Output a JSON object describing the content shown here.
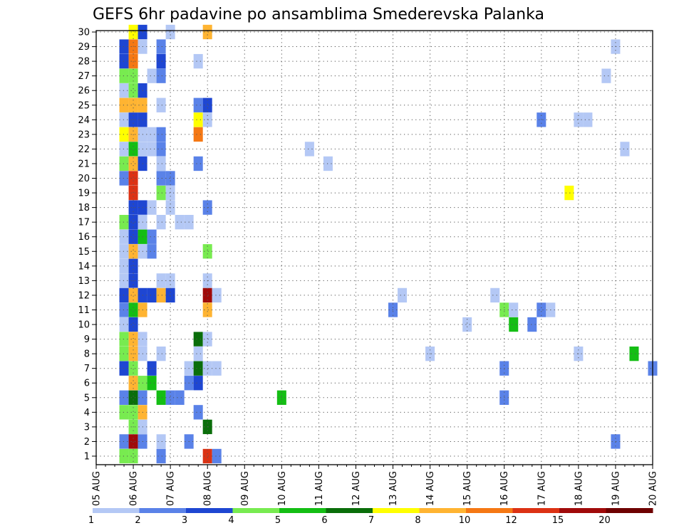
{
  "chart_data": {
    "type": "heatmap",
    "title": "GEFS 6hr padavine po ansamblima Smederevska Palanka",
    "xlabel": "",
    "ylabel": "",
    "x_ticks": [
      "05 AUG",
      "06 AUG",
      "07 AUG",
      "08 AUG",
      "09 AUG",
      "10 AUG",
      "11 AUG",
      "12 AUG",
      "13 AUG",
      "14 AUG",
      "15 AUG",
      "16 AUG",
      "17 AUG",
      "18 AUG",
      "19 AUG",
      "20 AUG"
    ],
    "y_ticks": [
      1,
      2,
      3,
      4,
      5,
      6,
      7,
      8,
      9,
      10,
      11,
      12,
      13,
      14,
      15,
      16,
      17,
      18,
      19,
      20,
      21,
      22,
      23,
      24,
      25,
      26,
      27,
      28,
      29,
      30
    ],
    "grid": true,
    "time_step_hours": 6,
    "members": 30,
    "colorbar": {
      "labels": [
        "1",
        "2",
        "3",
        "4",
        "5",
        "6",
        "7",
        "8",
        "10",
        "12",
        "15",
        "20"
      ],
      "colors": [
        "#b4c8f5",
        "#5a82e8",
        "#1e46d2",
        "#78eb50",
        "#14be14",
        "#0a6e0a",
        "#ffff00",
        "#ffb432",
        "#f57814",
        "#dc3214",
        "#a00a0a",
        "#6e0000"
      ]
    },
    "cells": [
      {
        "member": 30,
        "step": 4,
        "level": 7
      },
      {
        "member": 30,
        "step": 5,
        "level": 3
      },
      {
        "member": 30,
        "step": 8,
        "level": 1
      },
      {
        "member": 30,
        "step": 12,
        "level": 8
      },
      {
        "member": 29,
        "step": 3,
        "level": 3
      },
      {
        "member": 29,
        "step": 4,
        "level": 9
      },
      {
        "member": 29,
        "step": 5,
        "level": 1
      },
      {
        "member": 29,
        "step": 7,
        "level": 2
      },
      {
        "member": 29,
        "step": 56,
        "level": 1
      },
      {
        "member": 28,
        "step": 3,
        "level": 3
      },
      {
        "member": 28,
        "step": 4,
        "level": 9
      },
      {
        "member": 28,
        "step": 7,
        "level": 3
      },
      {
        "member": 28,
        "step": 11,
        "level": 1
      },
      {
        "member": 27,
        "step": 3,
        "level": 4
      },
      {
        "member": 27,
        "step": 4,
        "level": 4
      },
      {
        "member": 27,
        "step": 6,
        "level": 1
      },
      {
        "member": 27,
        "step": 7,
        "level": 2
      },
      {
        "member": 27,
        "step": 55,
        "level": 1
      },
      {
        "member": 26,
        "step": 3,
        "level": 1
      },
      {
        "member": 26,
        "step": 4,
        "level": 4
      },
      {
        "member": 26,
        "step": 5,
        "level": 3
      },
      {
        "member": 25,
        "step": 3,
        "level": 8
      },
      {
        "member": 25,
        "step": 4,
        "level": 8
      },
      {
        "member": 25,
        "step": 5,
        "level": 8
      },
      {
        "member": 25,
        "step": 7,
        "level": 1
      },
      {
        "member": 25,
        "step": 11,
        "level": 2
      },
      {
        "member": 25,
        "step": 12,
        "level": 3
      },
      {
        "member": 24,
        "step": 3,
        "level": 1
      },
      {
        "member": 24,
        "step": 4,
        "level": 3
      },
      {
        "member": 24,
        "step": 5,
        "level": 3
      },
      {
        "member": 24,
        "step": 11,
        "level": 7
      },
      {
        "member": 24,
        "step": 12,
        "level": 1
      },
      {
        "member": 24,
        "step": 48,
        "level": 2
      },
      {
        "member": 24,
        "step": 52,
        "level": 1
      },
      {
        "member": 24,
        "step": 53,
        "level": 1
      },
      {
        "member": 23,
        "step": 3,
        "level": 7
      },
      {
        "member": 23,
        "step": 4,
        "level": 8
      },
      {
        "member": 23,
        "step": 5,
        "level": 1
      },
      {
        "member": 23,
        "step": 6,
        "level": 1
      },
      {
        "member": 23,
        "step": 7,
        "level": 2
      },
      {
        "member": 23,
        "step": 11,
        "level": 9
      },
      {
        "member": 22,
        "step": 3,
        "level": 1
      },
      {
        "member": 22,
        "step": 4,
        "level": 5
      },
      {
        "member": 22,
        "step": 5,
        "level": 1
      },
      {
        "member": 22,
        "step": 6,
        "level": 1
      },
      {
        "member": 22,
        "step": 7,
        "level": 2
      },
      {
        "member": 22,
        "step": 23,
        "level": 1
      },
      {
        "member": 22,
        "step": 57,
        "level": 1
      },
      {
        "member": 21,
        "step": 3,
        "level": 4
      },
      {
        "member": 21,
        "step": 4,
        "level": 8
      },
      {
        "member": 21,
        "step": 5,
        "level": 3
      },
      {
        "member": 21,
        "step": 7,
        "level": 1
      },
      {
        "member": 21,
        "step": 11,
        "level": 2
      },
      {
        "member": 21,
        "step": 25,
        "level": 1
      },
      {
        "member": 20,
        "step": 3,
        "level": 2
      },
      {
        "member": 20,
        "step": 4,
        "level": 10
      },
      {
        "member": 20,
        "step": 7,
        "level": 2
      },
      {
        "member": 20,
        "step": 8,
        "level": 2
      },
      {
        "member": 19,
        "step": 4,
        "level": 10
      },
      {
        "member": 19,
        "step": 7,
        "level": 4
      },
      {
        "member": 19,
        "step": 8,
        "level": 1
      },
      {
        "member": 19,
        "step": 51,
        "level": 7
      },
      {
        "member": 18,
        "step": 4,
        "level": 3
      },
      {
        "member": 18,
        "step": 5,
        "level": 3
      },
      {
        "member": 18,
        "step": 6,
        "level": 1
      },
      {
        "member": 18,
        "step": 8,
        "level": 1
      },
      {
        "member": 18,
        "step": 12,
        "level": 2
      },
      {
        "member": 17,
        "step": 3,
        "level": 4
      },
      {
        "member": 17,
        "step": 4,
        "level": 3
      },
      {
        "member": 17,
        "step": 5,
        "level": 1
      },
      {
        "member": 17,
        "step": 7,
        "level": 1
      },
      {
        "member": 17,
        "step": 9,
        "level": 1
      },
      {
        "member": 17,
        "step": 10,
        "level": 1
      },
      {
        "member": 16,
        "step": 3,
        "level": 1
      },
      {
        "member": 16,
        "step": 4,
        "level": 3
      },
      {
        "member": 16,
        "step": 5,
        "level": 5
      },
      {
        "member": 16,
        "step": 6,
        "level": 2
      },
      {
        "member": 15,
        "step": 3,
        "level": 1
      },
      {
        "member": 15,
        "step": 4,
        "level": 8
      },
      {
        "member": 15,
        "step": 5,
        "level": 1
      },
      {
        "member": 15,
        "step": 6,
        "level": 2
      },
      {
        "member": 15,
        "step": 12,
        "level": 4
      },
      {
        "member": 14,
        "step": 3,
        "level": 1
      },
      {
        "member": 14,
        "step": 4,
        "level": 3
      },
      {
        "member": 13,
        "step": 3,
        "level": 1
      },
      {
        "member": 13,
        "step": 4,
        "level": 3
      },
      {
        "member": 13,
        "step": 7,
        "level": 1
      },
      {
        "member": 13,
        "step": 8,
        "level": 1
      },
      {
        "member": 13,
        "step": 12,
        "level": 1
      },
      {
        "member": 12,
        "step": 3,
        "level": 3
      },
      {
        "member": 12,
        "step": 4,
        "level": 8
      },
      {
        "member": 12,
        "step": 5,
        "level": 3
      },
      {
        "member": 12,
        "step": 6,
        "level": 3
      },
      {
        "member": 12,
        "step": 7,
        "level": 8
      },
      {
        "member": 12,
        "step": 8,
        "level": 3
      },
      {
        "member": 12,
        "step": 12,
        "level": 11
      },
      {
        "member": 12,
        "step": 13,
        "level": 1
      },
      {
        "member": 12,
        "step": 33,
        "level": 1
      },
      {
        "member": 12,
        "step": 43,
        "level": 1
      },
      {
        "member": 11,
        "step": 3,
        "level": 2
      },
      {
        "member": 11,
        "step": 4,
        "level": 5
      },
      {
        "member": 11,
        "step": 5,
        "level": 8
      },
      {
        "member": 11,
        "step": 12,
        "level": 8
      },
      {
        "member": 11,
        "step": 32,
        "level": 2
      },
      {
        "member": 11,
        "step": 44,
        "level": 4
      },
      {
        "member": 11,
        "step": 45,
        "level": 1
      },
      {
        "member": 11,
        "step": 48,
        "level": 2
      },
      {
        "member": 11,
        "step": 49,
        "level": 1
      },
      {
        "member": 10,
        "step": 3,
        "level": 1
      },
      {
        "member": 10,
        "step": 4,
        "level": 3
      },
      {
        "member": 10,
        "step": 40,
        "level": 1
      },
      {
        "member": 10,
        "step": 45,
        "level": 5
      },
      {
        "member": 10,
        "step": 47,
        "level": 2
      },
      {
        "member": 9,
        "step": 3,
        "level": 4
      },
      {
        "member": 9,
        "step": 4,
        "level": 8
      },
      {
        "member": 9,
        "step": 5,
        "level": 1
      },
      {
        "member": 9,
        "step": 11,
        "level": 6
      },
      {
        "member": 9,
        "step": 12,
        "level": 1
      },
      {
        "member": 8,
        "step": 3,
        "level": 4
      },
      {
        "member": 8,
        "step": 4,
        "level": 8
      },
      {
        "member": 8,
        "step": 5,
        "level": 1
      },
      {
        "member": 8,
        "step": 7,
        "level": 1
      },
      {
        "member": 8,
        "step": 11,
        "level": 1
      },
      {
        "member": 8,
        "step": 36,
        "level": 1
      },
      {
        "member": 8,
        "step": 52,
        "level": 1
      },
      {
        "member": 8,
        "step": 58,
        "level": 5
      },
      {
        "member": 7,
        "step": 3,
        "level": 3
      },
      {
        "member": 7,
        "step": 4,
        "level": 4
      },
      {
        "member": 7,
        "step": 6,
        "level": 3
      },
      {
        "member": 7,
        "step": 10,
        "level": 1
      },
      {
        "member": 7,
        "step": 11,
        "level": 6
      },
      {
        "member": 7,
        "step": 12,
        "level": 1
      },
      {
        "member": 7,
        "step": 13,
        "level": 1
      },
      {
        "member": 7,
        "step": 44,
        "level": 2
      },
      {
        "member": 7,
        "step": 60,
        "level": 2
      },
      {
        "member": 6,
        "step": 4,
        "level": 8
      },
      {
        "member": 6,
        "step": 5,
        "level": 4
      },
      {
        "member": 6,
        "step": 6,
        "level": 5
      },
      {
        "member": 6,
        "step": 10,
        "level": 2
      },
      {
        "member": 6,
        "step": 11,
        "level": 3
      },
      {
        "member": 5,
        "step": 3,
        "level": 2
      },
      {
        "member": 5,
        "step": 4,
        "level": 6
      },
      {
        "member": 5,
        "step": 5,
        "level": 2
      },
      {
        "member": 5,
        "step": 7,
        "level": 5
      },
      {
        "member": 5,
        "step": 8,
        "level": 2
      },
      {
        "member": 5,
        "step": 9,
        "level": 2
      },
      {
        "member": 5,
        "step": 20,
        "level": 5
      },
      {
        "member": 5,
        "step": 44,
        "level": 2
      },
      {
        "member": 4,
        "step": 3,
        "level": 4
      },
      {
        "member": 4,
        "step": 4,
        "level": 4
      },
      {
        "member": 4,
        "step": 5,
        "level": 8
      },
      {
        "member": 4,
        "step": 11,
        "level": 2
      },
      {
        "member": 3,
        "step": 4,
        "level": 4
      },
      {
        "member": 3,
        "step": 5,
        "level": 1
      },
      {
        "member": 3,
        "step": 12,
        "level": 6
      },
      {
        "member": 2,
        "step": 3,
        "level": 2
      },
      {
        "member": 2,
        "step": 4,
        "level": 11
      },
      {
        "member": 2,
        "step": 5,
        "level": 2
      },
      {
        "member": 2,
        "step": 7,
        "level": 1
      },
      {
        "member": 2,
        "step": 10,
        "level": 2
      },
      {
        "member": 2,
        "step": 56,
        "level": 2
      },
      {
        "member": 1,
        "step": 3,
        "level": 4
      },
      {
        "member": 1,
        "step": 4,
        "level": 4
      },
      {
        "member": 1,
        "step": 7,
        "level": 2
      },
      {
        "member": 1,
        "step": 12,
        "level": 10
      },
      {
        "member": 1,
        "step": 13,
        "level": 2
      }
    ]
  }
}
